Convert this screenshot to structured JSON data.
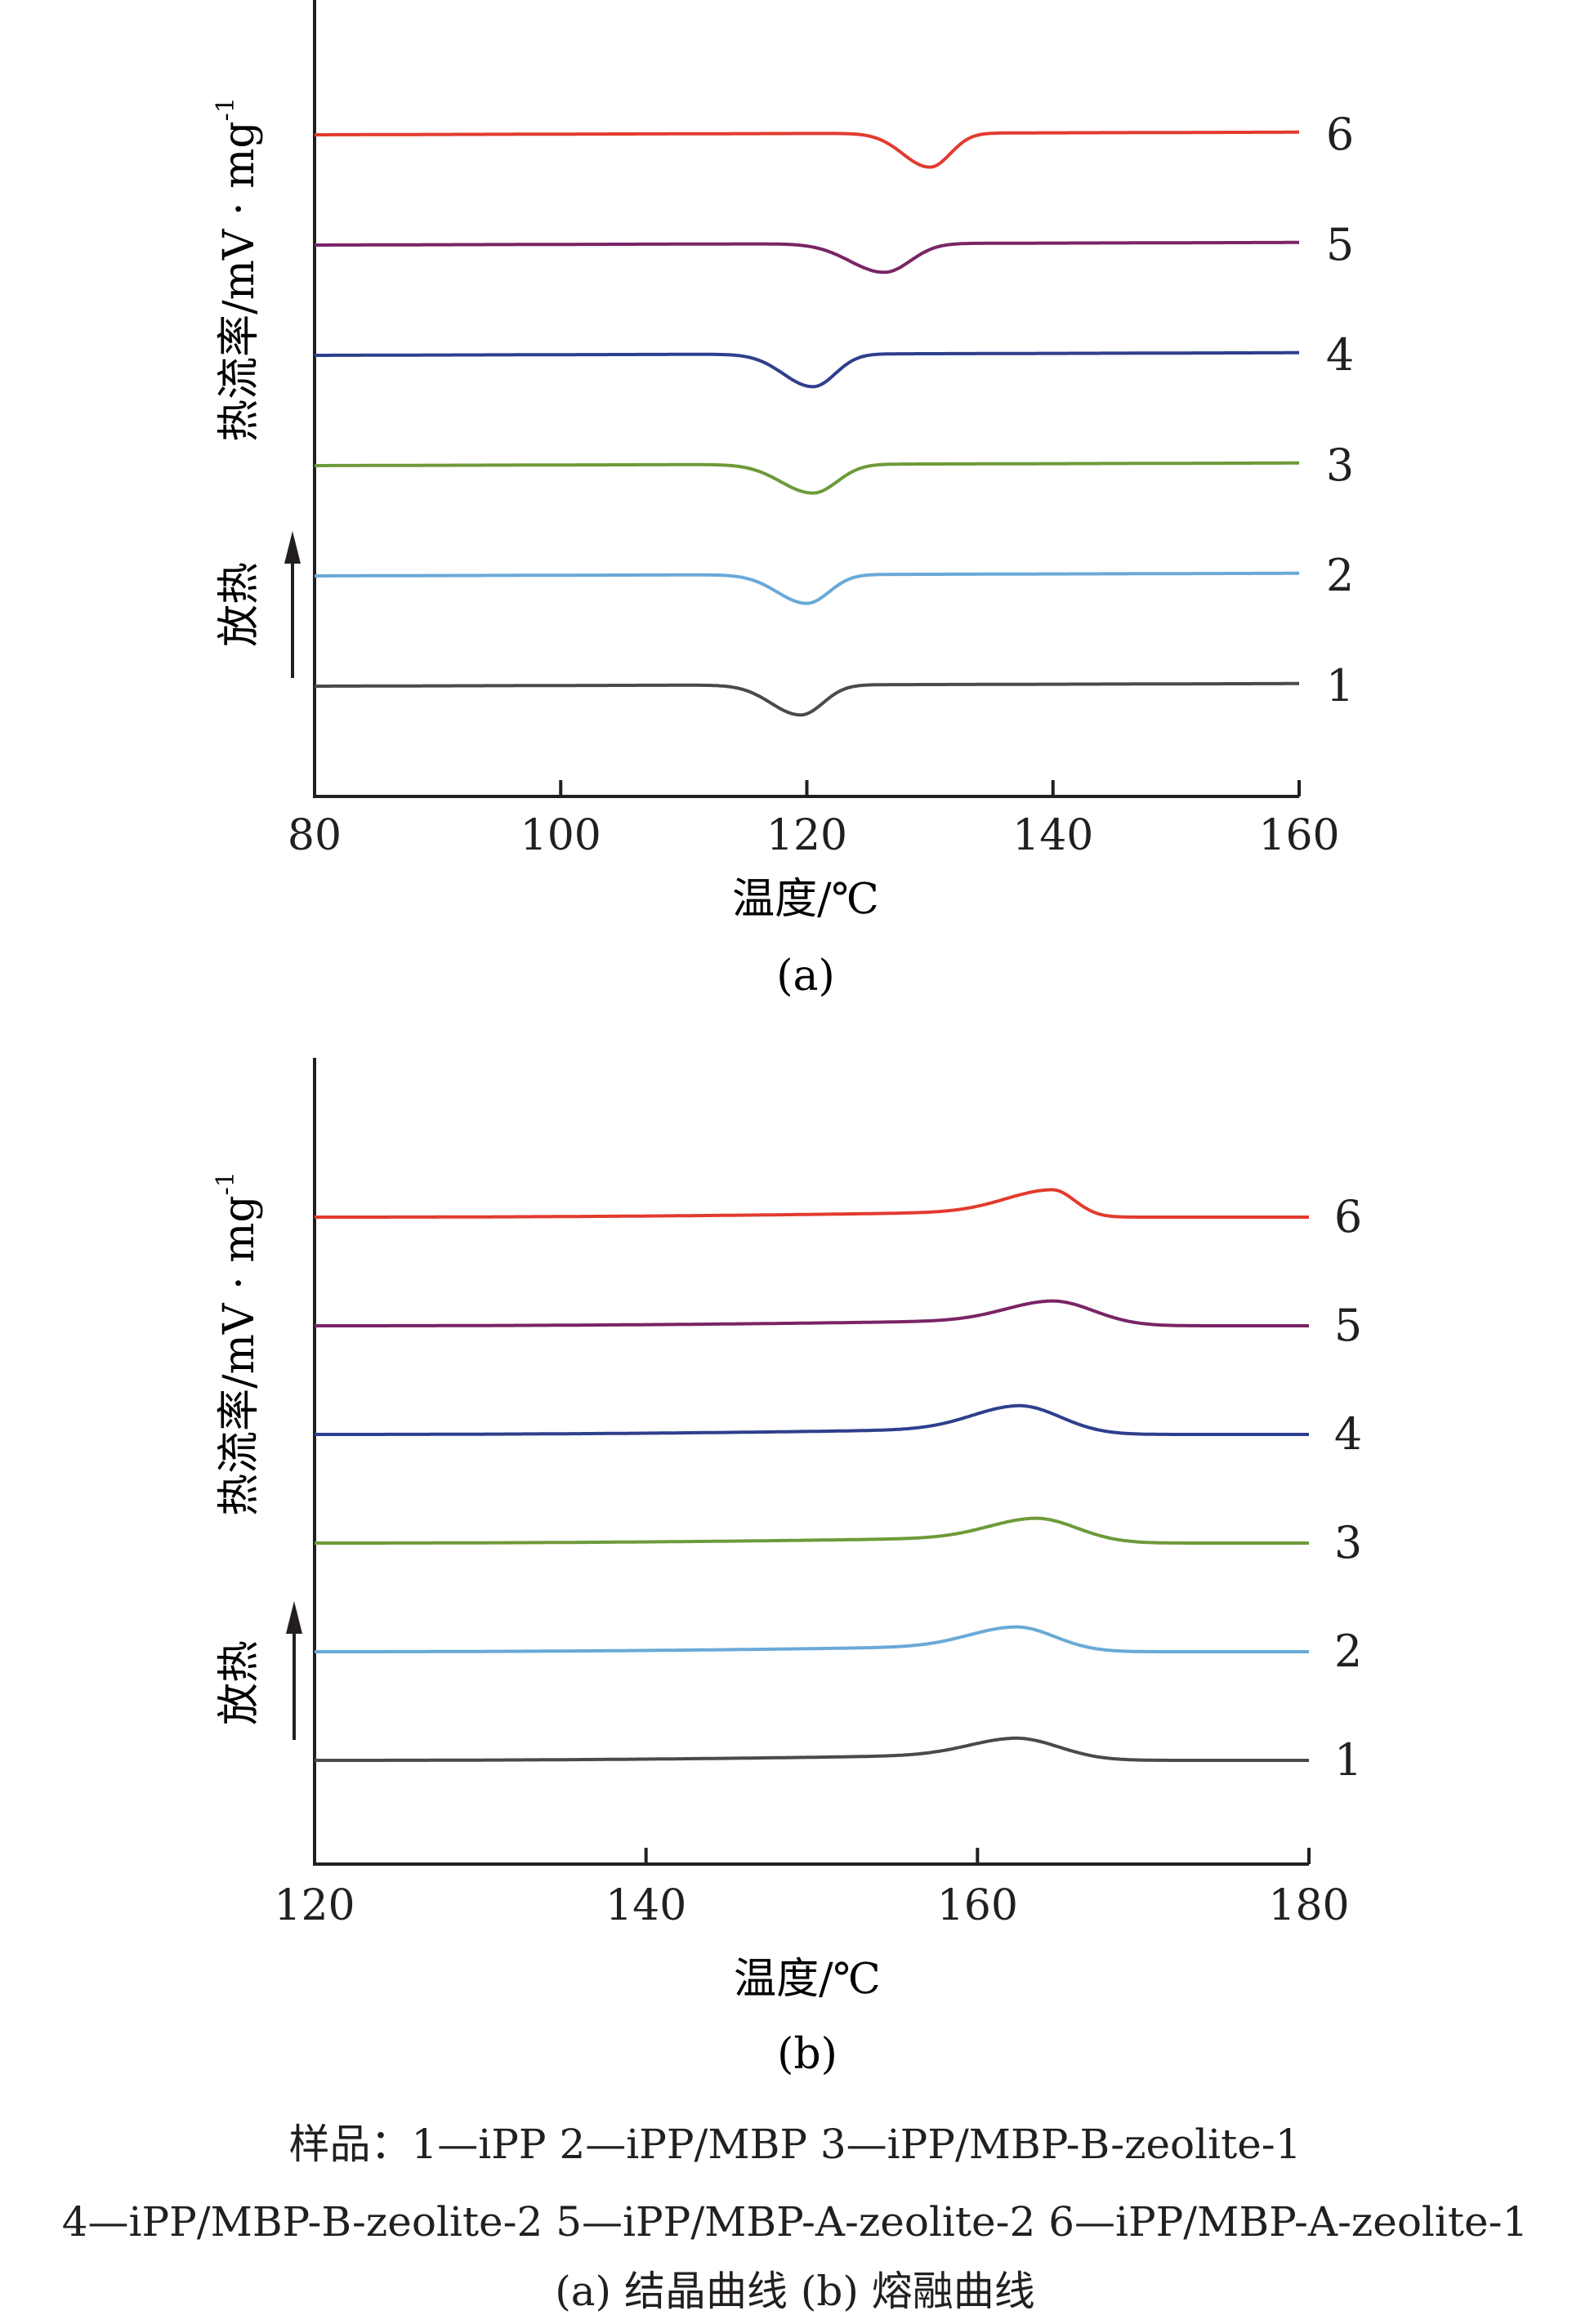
{
  "colors": {
    "axis": "#231f20",
    "s1": "#4a4a4a",
    "s2": "#6aa9d8",
    "s3": "#6e9a3a",
    "s4": "#2f3f8c",
    "s5": "#7a2466",
    "s6": "#e23b2e"
  },
  "chart_data": [
    {
      "type": "line",
      "sublabel": "(a)",
      "xlabel": "温度/℃",
      "ylabel": "热流率/mV · mg",
      "ylabel_exp": "-1",
      "direction_label": "放热",
      "xlim": [
        80,
        160
      ],
      "xticks": [
        80,
        100,
        120,
        140,
        160
      ],
      "xtick_labels": [
        "80",
        "100",
        "120",
        "140",
        "160"
      ],
      "series": [
        {
          "label": "1",
          "baseline_rel": 0.0,
          "peak_x": 119.5,
          "peak_depth": 0.23,
          "width": 2.4,
          "color_key": "s1"
        },
        {
          "label": "2",
          "baseline_rel": 1.0,
          "peak_x": 120.0,
          "peak_depth": 0.22,
          "width": 2.4,
          "color_key": "s2"
        },
        {
          "label": "3",
          "baseline_rel": 2.0,
          "peak_x": 120.5,
          "peak_depth": 0.22,
          "width": 2.6,
          "color_key": "s3"
        },
        {
          "label": "4",
          "baseline_rel": 3.0,
          "peak_x": 120.5,
          "peak_depth": 0.25,
          "width": 2.4,
          "color_key": "s4"
        },
        {
          "label": "5",
          "baseline_rel": 4.0,
          "peak_x": 126.3,
          "peak_depth": 0.22,
          "width": 2.8,
          "color_key": "s5"
        },
        {
          "label": "6",
          "baseline_rel": 5.0,
          "peak_x": 130.0,
          "peak_depth": 0.26,
          "width": 2.2,
          "color_key": "s6"
        }
      ]
    },
    {
      "type": "line",
      "sublabel": "(b)",
      "xlabel": "温度/℃",
      "ylabel": "热流率/mV · mg",
      "ylabel_exp": "-1",
      "direction_label": "放热",
      "xlim": [
        120,
        180
      ],
      "xticks": [
        120,
        140,
        160,
        180
      ],
      "xtick_labels": [
        "120",
        "140",
        "160",
        "180"
      ],
      "series": [
        {
          "label": "1",
          "baseline_rel": 0.0,
          "peak_x": 162.3,
          "peak_height": 0.17,
          "tail_end": 168.0,
          "color_key": "s1"
        },
        {
          "label": "2",
          "baseline_rel": 1.0,
          "peak_x": 162.3,
          "peak_height": 0.19,
          "tail_end": 167.5,
          "color_key": "s2"
        },
        {
          "label": "3",
          "baseline_rel": 2.0,
          "peak_x": 163.5,
          "peak_height": 0.19,
          "tail_end": 169.0,
          "color_key": "s3"
        },
        {
          "label": "4",
          "baseline_rel": 3.0,
          "peak_x": 162.5,
          "peak_height": 0.22,
          "tail_end": 168.0,
          "color_key": "s4"
        },
        {
          "label": "5",
          "baseline_rel": 4.0,
          "peak_x": 164.5,
          "peak_height": 0.19,
          "tail_end": 170.0,
          "color_key": "s5"
        },
        {
          "label": "6",
          "baseline_rel": 5.0,
          "peak_x": 164.5,
          "peak_height": 0.21,
          "tail_end": 167.5,
          "color_key": "s6"
        }
      ]
    }
  ],
  "caption": {
    "line1": "样品：1—iPP    2—iPP/MBP    3—iPP/MBP-B-zeolite-1",
    "line2": "4—iPP/MBP-B-zeolite-2    5—iPP/MBP-A-zeolite-2    6—iPP/MBP-A-zeolite-1",
    "line3": "(a) 结晶曲线    (b) 熔融曲线"
  }
}
